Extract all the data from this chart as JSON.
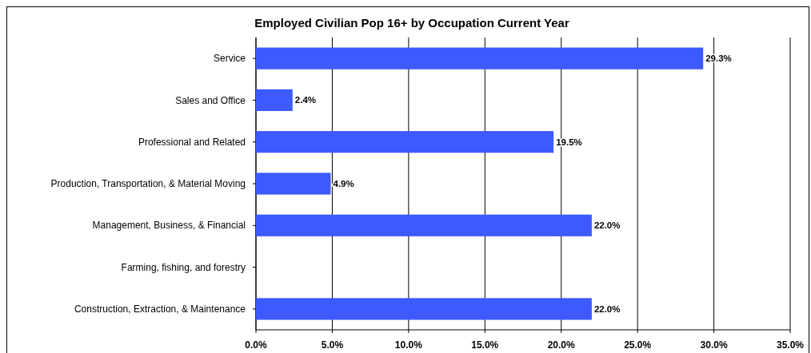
{
  "chart_data": {
    "type": "bar",
    "orientation": "horizontal",
    "title": "Employed Civilian Pop 16+ by Occupation Current Year",
    "categories": [
      "Service",
      "Sales and Office",
      "Professional and Related",
      "Production, Transportation, & Material Moving",
      "Management, Business, & Financial",
      "Farming, fishing, and forestry",
      "Construction, Extraction, & Maintenance"
    ],
    "values": [
      29.3,
      2.4,
      19.5,
      4.9,
      22.0,
      null,
      22.0
    ],
    "value_labels": [
      "29.3%",
      "2.4%",
      "19.5%",
      "4.9%",
      "22.0%",
      null,
      "22.0%"
    ],
    "color": "#3d5afe",
    "xlim": [
      0,
      35
    ],
    "xticks": [
      {
        "value": 0,
        "label": "0.0%"
      },
      {
        "value": 5,
        "label": "5.0%"
      },
      {
        "value": 10,
        "label": "10.0%"
      },
      {
        "value": 15,
        "label": "15.0%"
      },
      {
        "value": 20,
        "label": "20.0%"
      },
      {
        "value": 25,
        "label": "25.0%"
      },
      {
        "value": 30,
        "label": "30.0%"
      },
      {
        "value": 35,
        "label": "35.0%"
      }
    ],
    "grid": "x"
  }
}
